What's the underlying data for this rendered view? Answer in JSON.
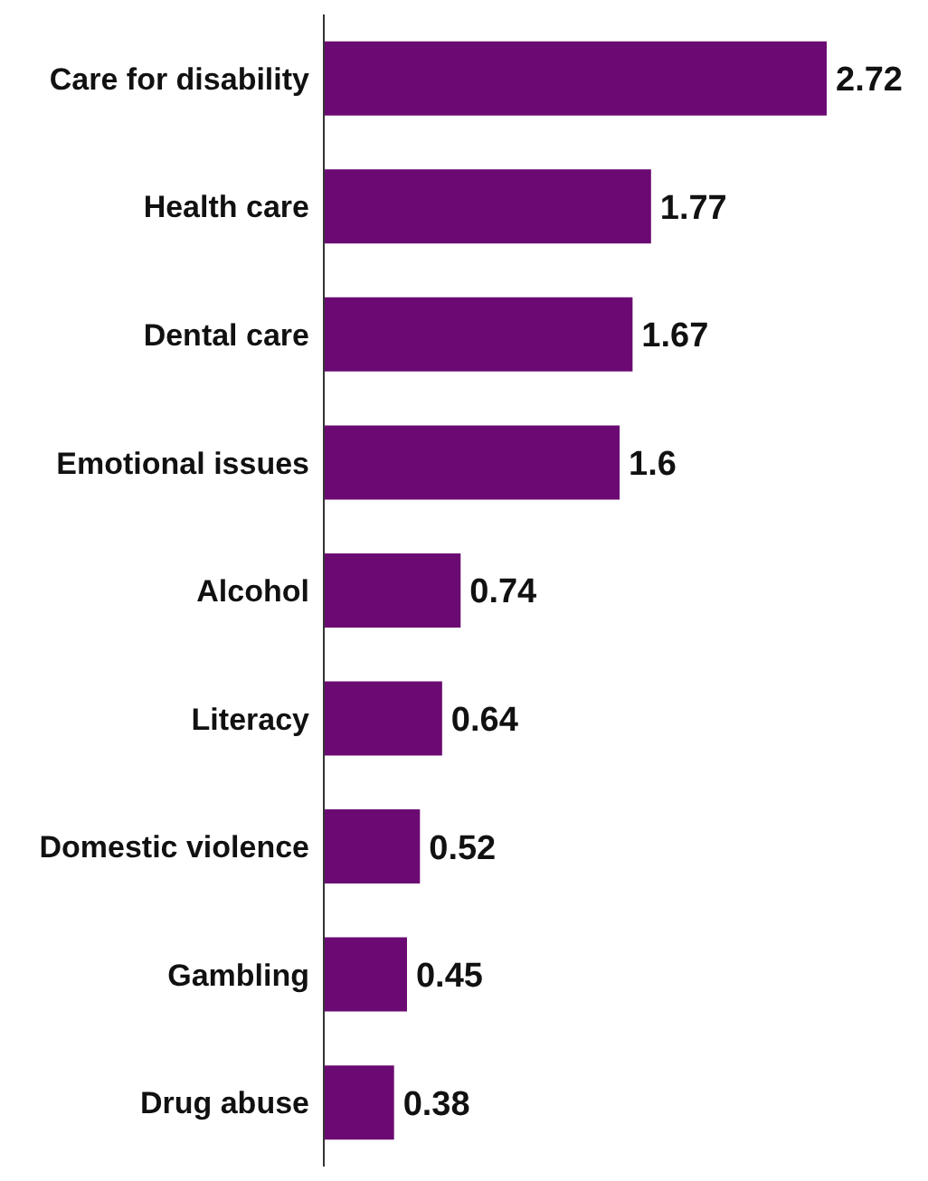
{
  "chart_data": {
    "type": "bar",
    "orientation": "horizontal",
    "data_labels": true,
    "categories": [
      "Care for disability",
      "Health care",
      "Dental care",
      "Emotional issues",
      "Alcohol",
      "Literacy",
      "Domestic violence",
      "Gambling",
      "Drug abuse"
    ],
    "values": [
      2.72,
      1.77,
      1.67,
      1.6,
      0.74,
      0.64,
      0.52,
      0.45,
      0.38
    ],
    "color": "#6b0a72"
  }
}
